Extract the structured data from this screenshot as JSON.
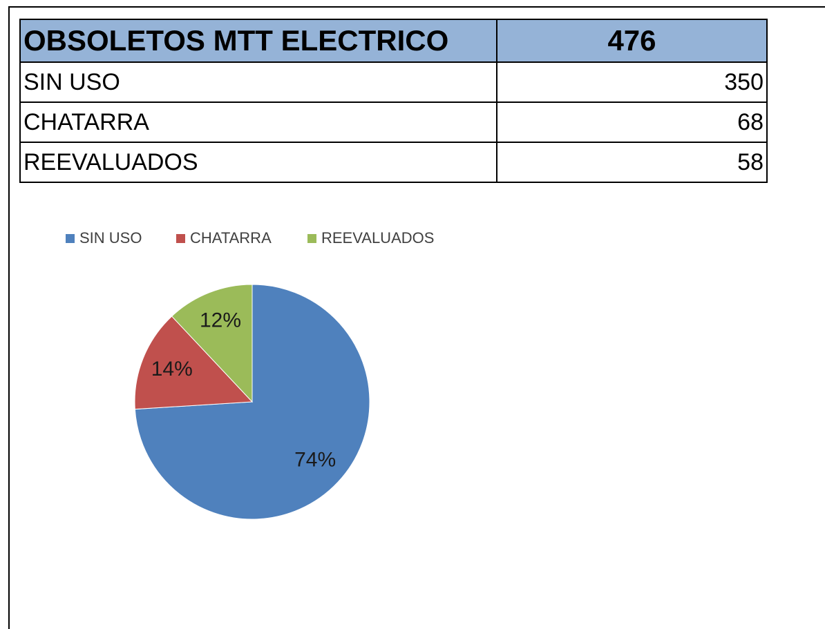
{
  "table": {
    "header": [
      "OBSOLETOS MTT ELECTRICO",
      476
    ],
    "rows": [
      [
        "SIN USO",
        350
      ],
      [
        "CHATARRA",
        68
      ],
      [
        "REEVALUADOS",
        58
      ]
    ]
  },
  "chart_data": {
    "type": "pie",
    "series": [
      {
        "name": "SIN USO",
        "color": "#4f81bd",
        "values": [
          74
        ],
        "value_labels": [
          "74%"
        ]
      },
      {
        "name": "CHATARRA",
        "color": "#c0504d",
        "values": [
          14
        ],
        "value_labels": [
          "14%"
        ]
      },
      {
        "name": "REEVALUADOS",
        "color": "#9bbb59",
        "values": [
          12
        ],
        "value_labels": [
          "12%"
        ]
      }
    ],
    "legend": "top"
  }
}
